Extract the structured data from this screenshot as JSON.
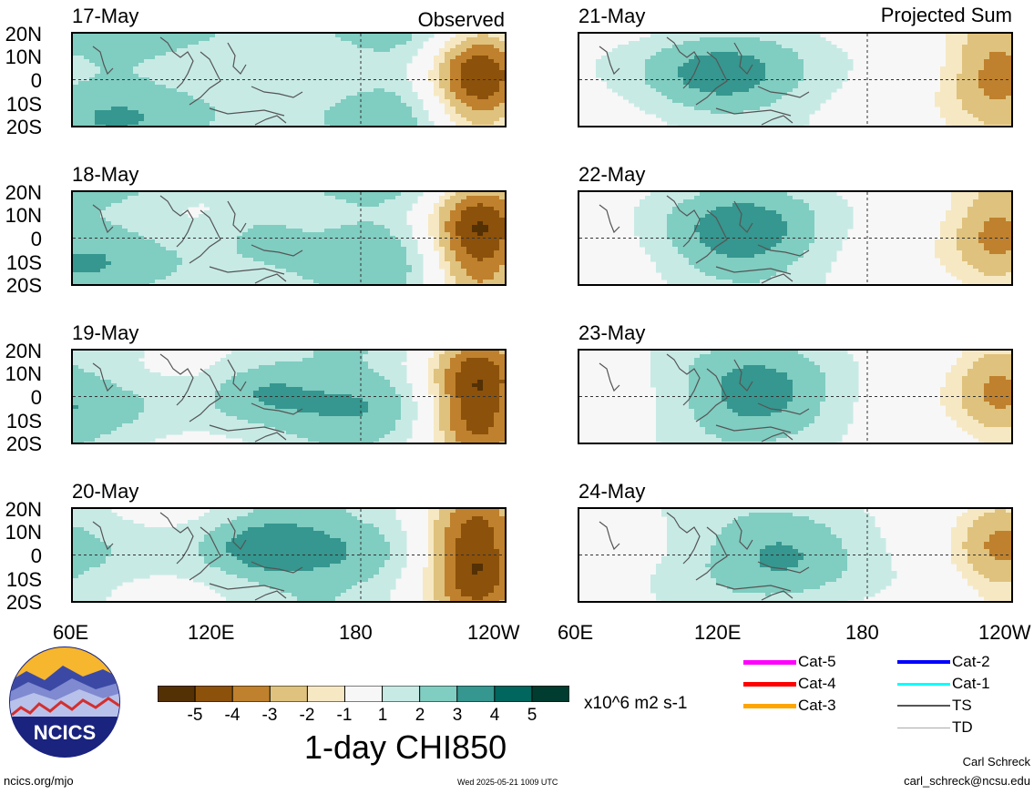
{
  "labels": {
    "observed": "Observed",
    "projected": "Projected Sum"
  },
  "lat_ticks": [
    "20N",
    "10N",
    "0",
    "10S",
    "20S"
  ],
  "lon_ticks": [
    "60E",
    "120E",
    "180",
    "120W"
  ],
  "panels": [
    {
      "date": "17-May",
      "col": 0,
      "row": 0,
      "seed": 1,
      "tag": "observed"
    },
    {
      "date": "18-May",
      "col": 0,
      "row": 1,
      "seed": 2
    },
    {
      "date": "19-May",
      "col": 0,
      "row": 2,
      "seed": 3
    },
    {
      "date": "20-May",
      "col": 0,
      "row": 3,
      "seed": 4
    },
    {
      "date": "21-May",
      "col": 1,
      "row": 0,
      "seed": 5,
      "tag": "projected"
    },
    {
      "date": "22-May",
      "col": 1,
      "row": 1,
      "seed": 6
    },
    {
      "date": "23-May",
      "col": 1,
      "row": 2,
      "seed": 7
    },
    {
      "date": "24-May",
      "col": 1,
      "row": 3,
      "seed": 8
    }
  ],
  "colorbar": {
    "colors": [
      "#543005",
      "#8c510a",
      "#bf812d",
      "#dfc27d",
      "#f6e8c3",
      "#f7f7f7",
      "#c7eae5",
      "#80cdc1",
      "#35978f",
      "#01665e",
      "#003c30"
    ],
    "labels": [
      "-5",
      "-4",
      "-3",
      "-2",
      "-1",
      "1",
      "2",
      "3",
      "4",
      "5"
    ],
    "units": "x10^6 m2 s-1",
    "title": "1-day CHI850"
  },
  "legend": [
    {
      "label": "Cat-5",
      "color": "#ff00ff",
      "width": 5
    },
    {
      "label": "Cat-4",
      "color": "#ff0000",
      "width": 5
    },
    {
      "label": "Cat-3",
      "color": "#ffa500",
      "width": 5
    },
    {
      "label": "Cat-2",
      "color": "#0000ff",
      "width": 4
    },
    {
      "label": "Cat-1",
      "color": "#00ffff",
      "width": 3
    },
    {
      "label": "TS",
      "color": "#555555",
      "width": 2
    },
    {
      "label": "TD",
      "color": "#aaaaaa",
      "width": 1
    }
  ],
  "logo": {
    "text": "NCICS"
  },
  "footer": {
    "site": "ncics.org/mjo",
    "timestamp": "Wed 2025-05-21 1009 UTC",
    "author": "Carl Schreck",
    "email": "carl_schreck@ncsu.edu"
  }
}
